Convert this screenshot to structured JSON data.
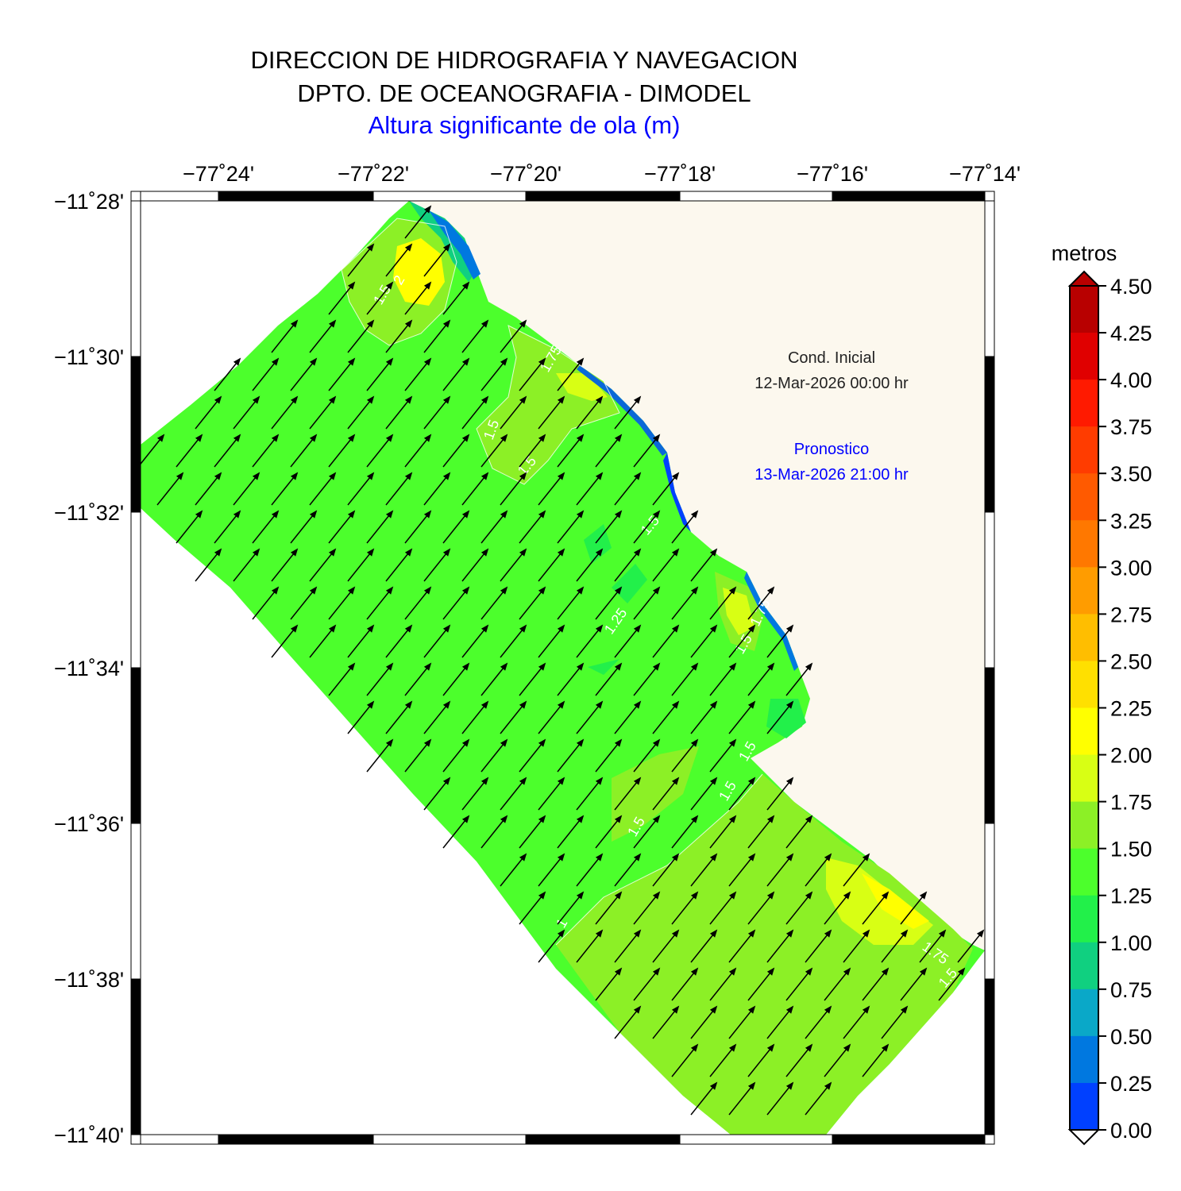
{
  "header": {
    "line1": "DIRECCION DE HIDROGRAFIA Y NAVEGACION",
    "line2": "DPTO. DE OCEANOGRAFIA - DIMODEL",
    "line3": "Altura significante de ola (m)"
  },
  "map": {
    "lon_ticks": [
      "−77˚24'",
      "−77˚22'",
      "−77˚20'",
      "−77˚18'",
      "−77˚16'",
      "−77˚14'"
    ],
    "lat_ticks": [
      "−11˚28'",
      "−11˚30'",
      "−11˚32'",
      "−11˚34'",
      "−11˚36'",
      "−11˚38'",
      "−11˚40'"
    ],
    "land_color": "#fcf8ee",
    "sea_base_color": "#4cff2c",
    "arrow_direction": "northeast",
    "contour_labels": [
      "1.5",
      "2",
      "1.75",
      "1.5",
      "1.5",
      "1.5",
      "1.25",
      "1.5",
      "1.5",
      "1.5",
      "1.5",
      "1.75",
      "1.5",
      "1.75",
      "1"
    ]
  },
  "annotation": {
    "cond_label": "Cond. Inicial",
    "cond_time": "12-Mar-2026 00:00 hr",
    "forecast_label": "Pronostico",
    "forecast_time": "13-Mar-2026 21:00 hr"
  },
  "colorbar": {
    "unit": "metros",
    "labels": [
      "4.50",
      "4.25",
      "4.00",
      "3.75",
      "3.50",
      "3.25",
      "3.00",
      "2.75",
      "2.50",
      "2.25",
      "2.00",
      "1.75",
      "1.50",
      "1.25",
      "1.00",
      "0.75",
      "0.50",
      "0.25",
      "0.00"
    ],
    "colors": [
      "#b80000",
      "#e00000",
      "#ff1a00",
      "#ff3c00",
      "#ff5a00",
      "#ff7800",
      "#ff9c00",
      "#ffbe00",
      "#ffe000",
      "#ffff00",
      "#d8ff14",
      "#8cf026",
      "#4cff2c",
      "#22f04a",
      "#10d080",
      "#0aa8c8",
      "#0078e0",
      "#0040ff",
      "#0010d8"
    ]
  }
}
